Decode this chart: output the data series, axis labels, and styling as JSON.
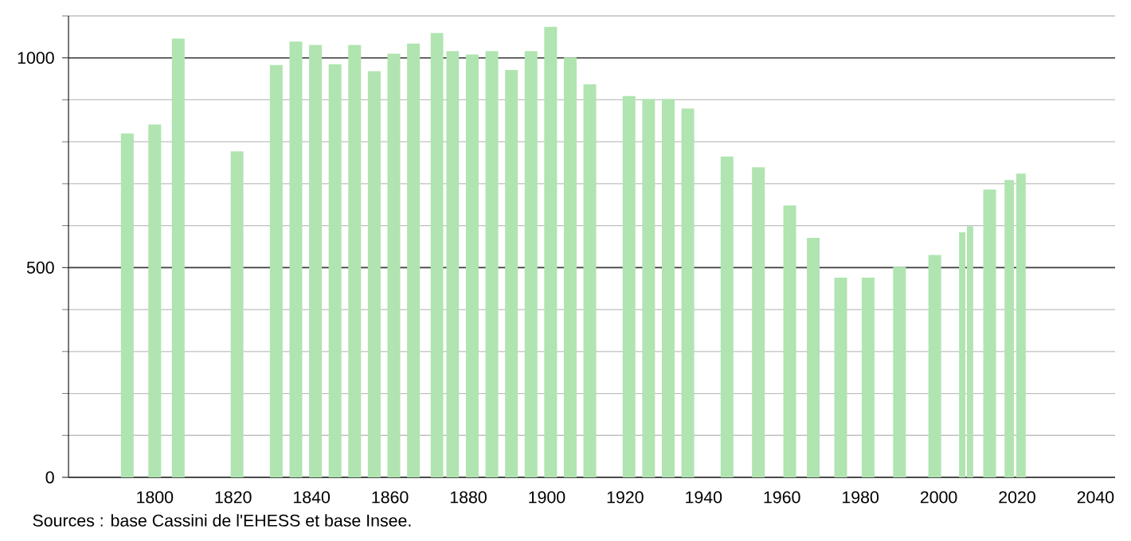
{
  "chart_data": {
    "type": "bar",
    "x": [
      1793,
      1800,
      1806,
      1821,
      1831,
      1836,
      1841,
      1846,
      1851,
      1856,
      1861,
      1866,
      1872,
      1876,
      1881,
      1886,
      1891,
      1896,
      1901,
      1906,
      1911,
      1921,
      1926,
      1931,
      1936,
      1946,
      1954,
      1962,
      1968,
      1975,
      1982,
      1990,
      1999,
      2006,
      2008,
      2013,
      2018,
      2021
    ],
    "values": [
      820,
      841,
      1046,
      777,
      983,
      1039,
      1031,
      985,
      1031,
      968,
      1010,
      1034,
      1059,
      1016,
      1008,
      1016,
      971,
      1016,
      1074,
      1001,
      937,
      909,
      902,
      902,
      879,
      765,
      739,
      648,
      571,
      476,
      476,
      502,
      530,
      584,
      599,
      686,
      709,
      724
    ],
    "color": "#b0e4b0",
    "xlim": [
      1778,
      2045
    ],
    "xticks": [
      1800,
      1820,
      1840,
      1860,
      1880,
      1900,
      1920,
      1940,
      1960,
      1980,
      2000,
      2020,
      2040
    ],
    "ylim": [
      0,
      1100
    ],
    "yticks": [
      0,
      {
        "value": 100,
        "label": null
      },
      {
        "value": 200,
        "label": null
      },
      {
        "value": 300,
        "label": null
      },
      {
        "value": 400,
        "label": null
      },
      500,
      {
        "value": 600,
        "label": null
      },
      {
        "value": 700,
        "label": null
      },
      {
        "value": 800,
        "label": null
      },
      {
        "value": 900,
        "label": null
      },
      1000,
      {
        "value": 1100,
        "label": null
      }
    ],
    "grid": "y",
    "annotations": [
      "Sources : base Cassini de l'EHESS et base Insee."
    ]
  }
}
